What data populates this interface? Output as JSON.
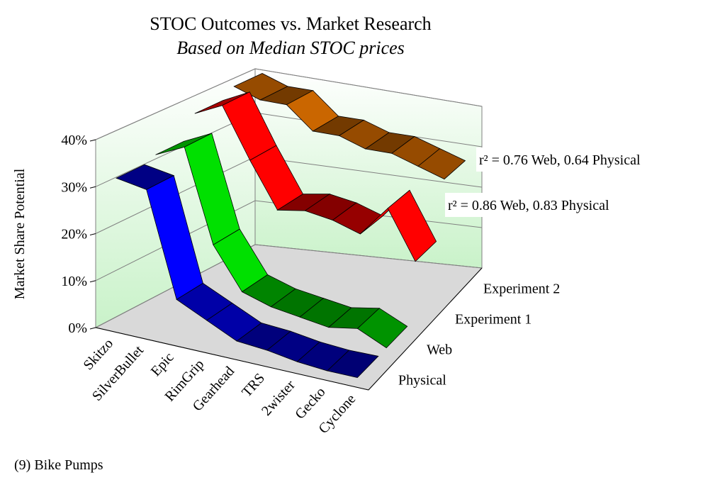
{
  "chart_data": {
    "type": "ribbon3d",
    "title": "STOC Outcomes vs. Market Research",
    "subtitle": "Based on Median STOC prices",
    "y_label": "Market Share Potential",
    "categories": [
      "Skitzo",
      "SilverBullet",
      "Epic",
      "RimGrip",
      "Gearhead",
      "TRS",
      "2wister",
      "Gecko",
      "Cyclone"
    ],
    "series": [
      {
        "name": "Physical",
        "color": "#0000ff",
        "values": [
          32,
          31,
          9,
          6,
          3,
          2.5,
          1.5,
          1,
          1
        ]
      },
      {
        "name": "Web",
        "color": "#00e000",
        "values": [
          33,
          36,
          16,
          7,
          5,
          4,
          3,
          4,
          1
        ]
      },
      {
        "name": "Experiment 1",
        "color": "#ff0000",
        "values": [
          38,
          41,
          30,
          20,
          21,
          20,
          18,
          25,
          14
        ]
      },
      {
        "name": "Experiment 2",
        "color": "#ff8000",
        "values": [
          40,
          38,
          38,
          33,
          33,
          31,
          31,
          29,
          27
        ]
      }
    ],
    "ylim": [
      0,
      40
    ],
    "yticks": [
      {
        "value": 0,
        "label": "0%"
      },
      {
        "value": 10,
        "label": "10%"
      },
      {
        "value": 20,
        "label": "20%"
      },
      {
        "value": 30,
        "label": "30%"
      },
      {
        "value": 40,
        "label": "40%"
      }
    ],
    "grid": true,
    "annotations": [
      "r² = 0.76 Web, 0.64 Physical",
      "r² = 0.86 Web, 0.83 Physical"
    ],
    "footnote": "(9) Bike Pumps"
  }
}
